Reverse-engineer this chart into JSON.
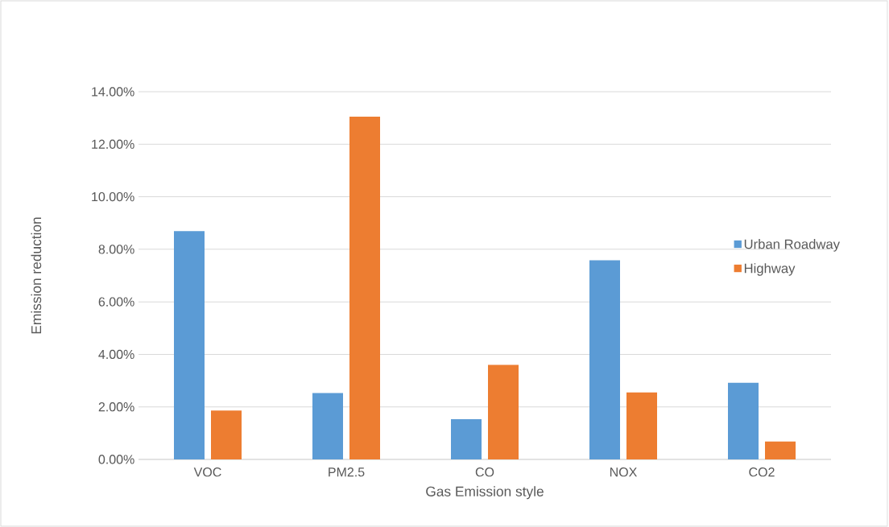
{
  "chart_data": {
    "type": "bar",
    "xlabel": "Gas Emission style",
    "ylabel": "Emission reduction",
    "categories": [
      "VOC",
      "PM2.5",
      "CO",
      "NOX",
      "CO2"
    ],
    "series": [
      {
        "name": "Urban Roadway",
        "color": "#5b9bd5",
        "values": [
          8.69,
          2.53,
          1.53,
          7.58,
          2.92
        ]
      },
      {
        "name": "Highway",
        "color": "#ed7d31",
        "values": [
          1.86,
          13.05,
          3.6,
          2.55,
          0.68
        ]
      }
    ],
    "ylim": [
      0,
      14
    ],
    "yticks": [
      {
        "value": 0,
        "label": "0.00%"
      },
      {
        "value": 2,
        "label": "2.00%"
      },
      {
        "value": 4,
        "label": "4.00%"
      },
      {
        "value": 6,
        "label": "6.00%"
      },
      {
        "value": 8,
        "label": "8.00%"
      },
      {
        "value": 10,
        "label": "10.00%"
      },
      {
        "value": 12,
        "label": "12.00%"
      },
      {
        "value": 14,
        "label": "14.00%"
      }
    ],
    "grid": "y",
    "legend": "right"
  }
}
